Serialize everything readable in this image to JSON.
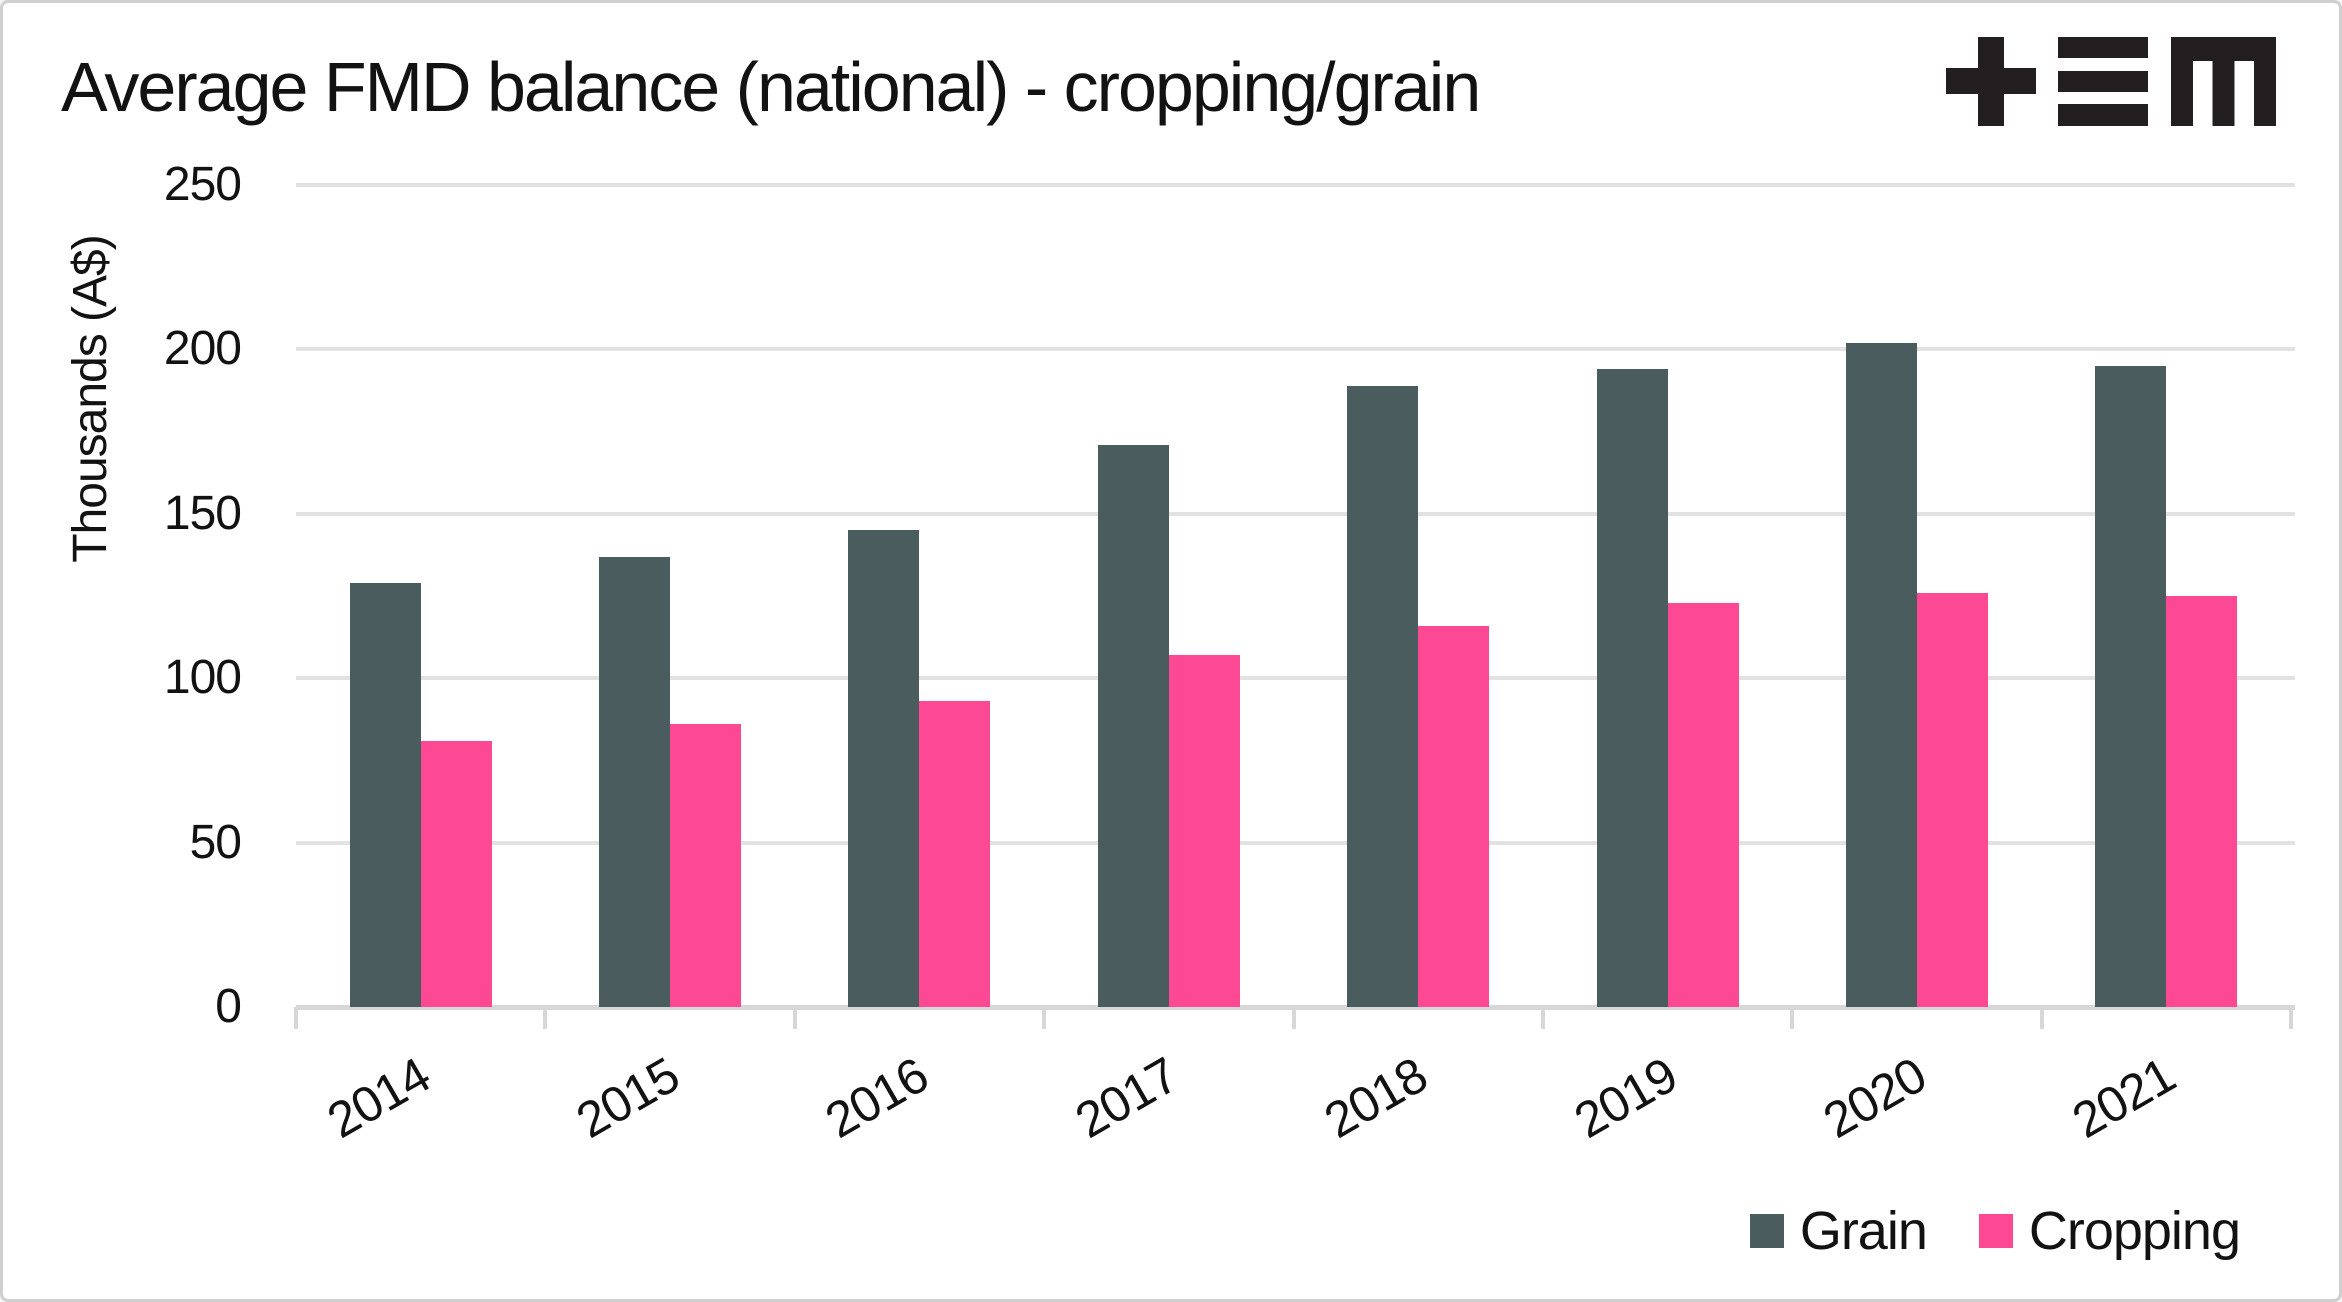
{
  "header": {
    "title": "Average FMD balance (national) - cropping/grain",
    "logo_alt": "+≡m",
    "logo_color": "#231f20"
  },
  "chart_data": {
    "type": "bar",
    "title": "Average FMD balance (national) - cropping/grain",
    "ylabel": "Thousands (A$)",
    "categories": [
      "2014",
      "2015",
      "2016",
      "2017",
      "2018",
      "2019",
      "2020",
      "2021"
    ],
    "series": [
      {
        "name": "Grain",
        "color": "#4a5c5e",
        "values": [
          129,
          137,
          145,
          171,
          189,
          194,
          202,
          195
        ]
      },
      {
        "name": "Cropping",
        "color": "#fd4894",
        "values": [
          81,
          86,
          93,
          107,
          116,
          123,
          126,
          125
        ]
      }
    ],
    "ylim": [
      0,
      250
    ],
    "yticks": [
      0,
      50,
      100,
      150,
      200,
      250
    ],
    "grid": true,
    "grid_color": "#e2e2e2",
    "axis_color": "#d7d7d7",
    "legend_position": "bottom-right",
    "x_tick_rotation": -30
  }
}
